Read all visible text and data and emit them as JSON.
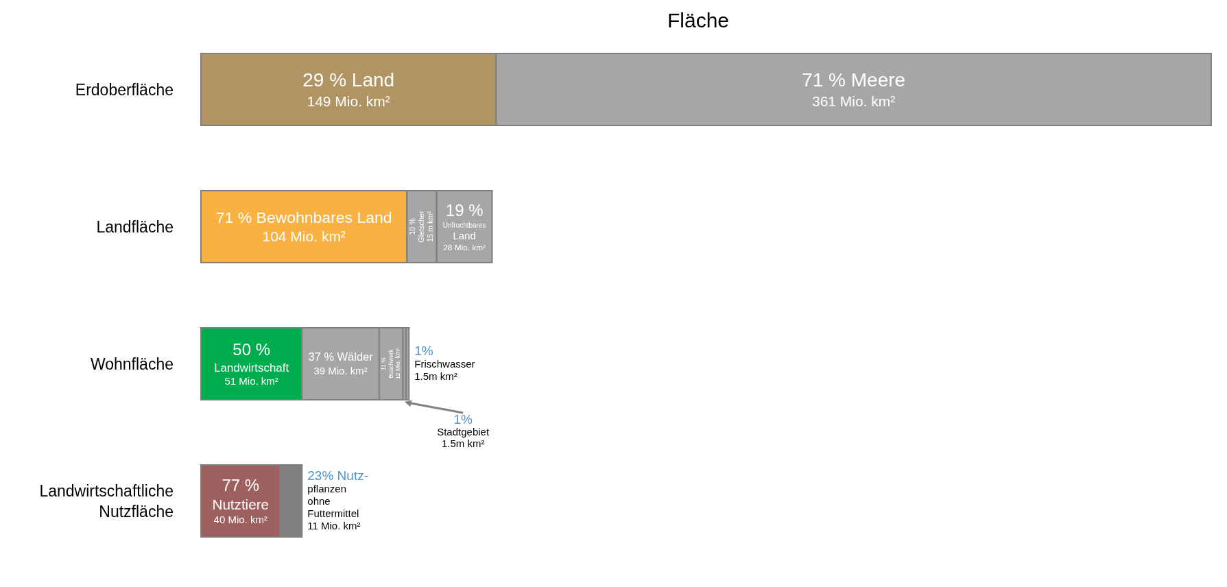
{
  "chart_data": {
    "type": "bar",
    "orientation": "horizontal",
    "stacked": true,
    "title": "Fläche",
    "categories": [
      "Erdoberfläche",
      "Landfläche",
      "Wohnfläche",
      "Landwirtschaftliche Nutzfläche"
    ],
    "series": [
      {
        "values": [
          149,
          104,
          51,
          40
        ],
        "colors": [
          "#b09464",
          "#f9b142",
          "#00ad4e",
          "#9e5f5f"
        ],
        "value_labels": [
          "29 % Land\n149 Mio. km²",
          "71 % Bewohnbares Land\n104 Mio. km²",
          "50 % Landwirtschaft\n51 Mio. km²",
          "77 % Nutztiere\n40 Mio. km²"
        ]
      },
      {
        "values": [
          361,
          15,
          39,
          11
        ],
        "colors": [
          "#a6a6a6",
          "#a6a6a6",
          "#a6a6a6",
          "#808080"
        ],
        "value_labels": [
          "71 % Meere\n361 Mio. km²",
          "10 %\nGletscher\n15 m km²",
          "37 % Wälder\n39 Mio. km²",
          "23% Nutz-\npflanzen\nohne\nFuttermittel\n11 Mio. km²"
        ]
      },
      {
        "values": [
          null,
          28,
          12,
          null
        ],
        "colors": [
          null,
          "#a6a6a6",
          "#a6a6a6",
          null
        ],
        "value_labels": [
          null,
          "19 %\nUnfruchtbares Land\n28 Mio. km²",
          "11 %\nBuschwerk\n12 Mio. km²",
          null
        ]
      },
      {
        "values": [
          null,
          null,
          1.5,
          null
        ],
        "colors": [
          null,
          null,
          "#a6a6a6",
          null
        ],
        "value_labels": [
          null,
          null,
          "1%\nStadtgebiet\n1.5m km²",
          null
        ]
      },
      {
        "values": [
          null,
          null,
          1.5,
          null
        ],
        "colors": [
          null,
          null,
          "#a6a6a6",
          null
        ],
        "value_labels": [
          null,
          null,
          "1%\nFrischwasser\n1.5m km²",
          null
        ]
      }
    ]
  }
}
